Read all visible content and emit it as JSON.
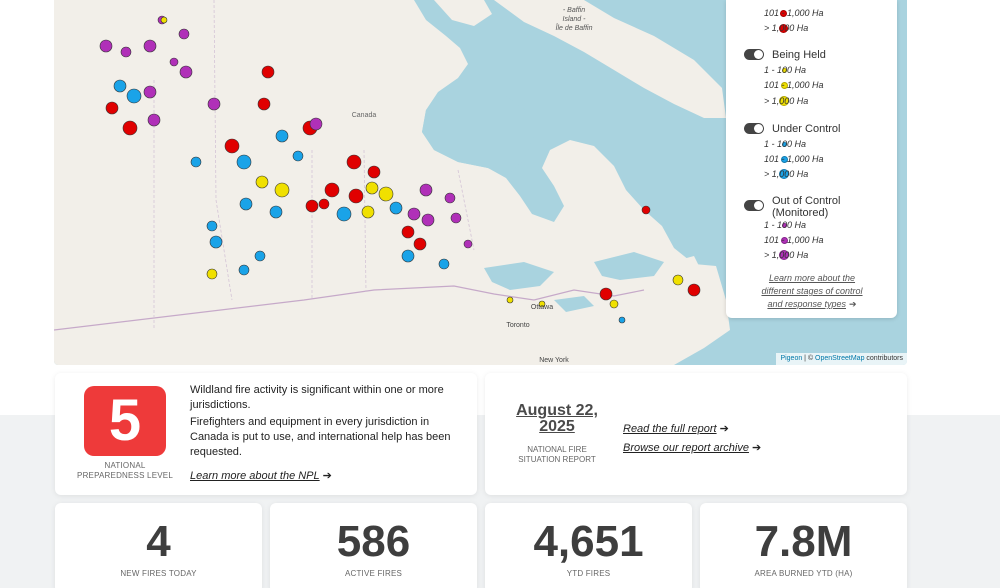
{
  "map": {
    "labels": {
      "baffin": [
        "- Baffin",
        "Island -",
        "Île de Baffin"
      ],
      "canada": "Canada",
      "ottawa": "Ottawa",
      "toronto": "Toronto",
      "new_york": "New York"
    },
    "attribution": {
      "pigeon": "Pigeon",
      "sep": " | © ",
      "osm": "OpenStreetMap",
      "contributors": " contributors"
    }
  },
  "legend": {
    "top_rows": [
      {
        "label": "101 - 1,000 Ha",
        "color": "#e00000"
      },
      {
        "label": "> 1,000 Ha",
        "color": "#e00000"
      }
    ],
    "groups": [
      {
        "title": "Being Held",
        "rows": [
          {
            "label": "1 - 100 Ha",
            "color": "#f0e000"
          },
          {
            "label": "101 - 1,000 Ha",
            "color": "#f0e000"
          },
          {
            "label": "> 1,000 Ha",
            "color": "#f0e000"
          }
        ]
      },
      {
        "title": "Under Control",
        "rows": [
          {
            "label": "1 - 100 Ha",
            "color": "#1aa3e8"
          },
          {
            "label": "101 - 1,000 Ha",
            "color": "#1aa3e8"
          },
          {
            "label": "> 1,000 Ha",
            "color": "#1aa3e8"
          }
        ]
      },
      {
        "title": "Out of Control (Monitored)",
        "rows": [
          {
            "label": "1 - 100 Ha",
            "color": "#b030b8"
          },
          {
            "label": "101 - 1,000 Ha",
            "color": "#b030b8"
          },
          {
            "label": "> 1,000 Ha",
            "color": "#b030b8"
          }
        ]
      }
    ],
    "learn_more": [
      "Learn more about the",
      "different stages of control",
      "and response types"
    ]
  },
  "npl": {
    "level": "5",
    "caption": [
      "NATIONAL",
      "PREPAREDNESS LEVEL"
    ],
    "description_1": "Wildland fire activity is significant within one or more jurisdictions.",
    "description_2": "Firefighters and equipment in every jurisdiction in Canada is put to use, and international help has been requested.",
    "link": "Learn more about the NPL"
  },
  "report": {
    "date_line1": "August 22,",
    "date_line2": "2025",
    "caption": [
      "NATIONAL FIRE",
      "SITUATION REPORT"
    ],
    "read_link": "Read the full report",
    "archive_link": "Browse our report archive"
  },
  "stats": [
    {
      "value": "4",
      "label": "NEW FIRES TODAY"
    },
    {
      "value": "586",
      "label": "ACTIVE FIRES"
    },
    {
      "value": "4,651",
      "label": "YTD FIRES"
    },
    {
      "value": "7.8M",
      "label": "AREA BURNED YTD (HA)"
    }
  ]
}
